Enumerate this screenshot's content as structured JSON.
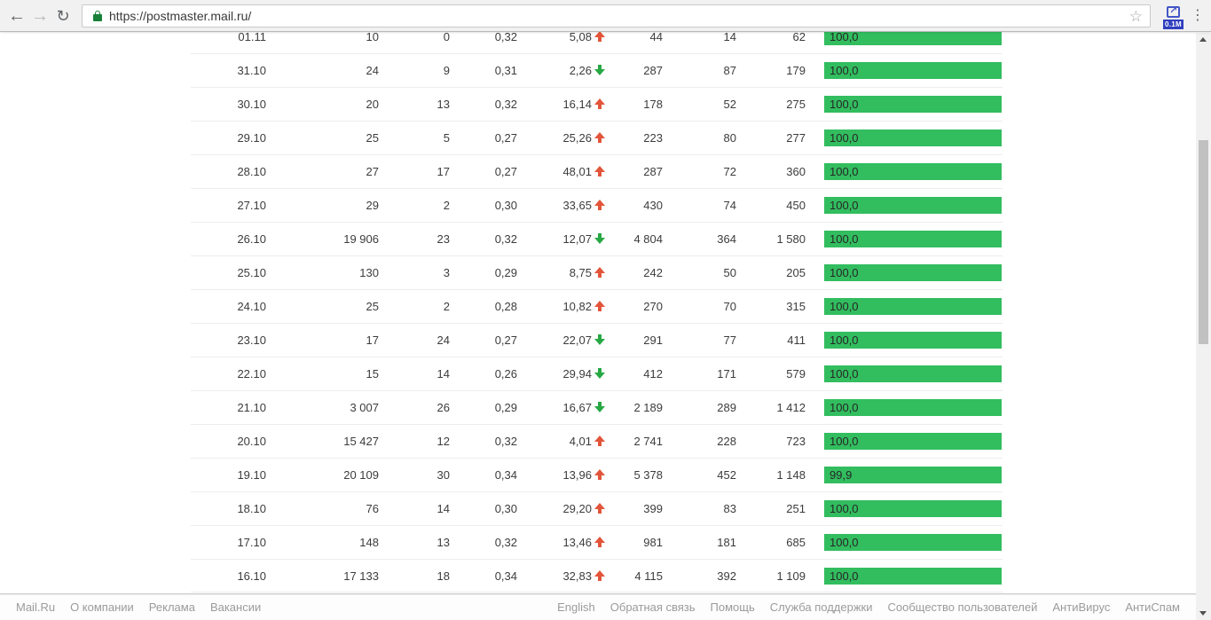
{
  "browser": {
    "url": "https://postmaster.mail.ru/",
    "extension_badge": "0.1M"
  },
  "colors": {
    "bar": "#32bd5f",
    "up": "#e2553a",
    "down": "#27a844"
  },
  "table": {
    "rows": [
      {
        "date": "01.11",
        "c1": "10",
        "c2": "0",
        "c3": "0,32",
        "trend": "5,08",
        "trend_dir": "up",
        "c5": "44",
        "c6": "14",
        "c7": "62",
        "bar": "100,0",
        "bar_pct": 100
      },
      {
        "date": "31.10",
        "c1": "24",
        "c2": "9",
        "c3": "0,31",
        "trend": "2,26",
        "trend_dir": "down",
        "c5": "287",
        "c6": "87",
        "c7": "179",
        "bar": "100,0",
        "bar_pct": 100
      },
      {
        "date": "30.10",
        "c1": "20",
        "c2": "13",
        "c3": "0,32",
        "trend": "16,14",
        "trend_dir": "up",
        "c5": "178",
        "c6": "52",
        "c7": "275",
        "bar": "100,0",
        "bar_pct": 100
      },
      {
        "date": "29.10",
        "c1": "25",
        "c2": "5",
        "c3": "0,27",
        "trend": "25,26",
        "trend_dir": "up",
        "c5": "223",
        "c6": "80",
        "c7": "277",
        "bar": "100,0",
        "bar_pct": 100
      },
      {
        "date": "28.10",
        "c1": "27",
        "c2": "17",
        "c3": "0,27",
        "trend": "48,01",
        "trend_dir": "up",
        "c5": "287",
        "c6": "72",
        "c7": "360",
        "bar": "100,0",
        "bar_pct": 100
      },
      {
        "date": "27.10",
        "c1": "29",
        "c2": "2",
        "c3": "0,30",
        "trend": "33,65",
        "trend_dir": "up",
        "c5": "430",
        "c6": "74",
        "c7": "450",
        "bar": "100,0",
        "bar_pct": 100
      },
      {
        "date": "26.10",
        "c1": "19 906",
        "c2": "23",
        "c3": "0,32",
        "trend": "12,07",
        "trend_dir": "down",
        "c5": "4 804",
        "c6": "364",
        "c7": "1 580",
        "bar": "100,0",
        "bar_pct": 100
      },
      {
        "date": "25.10",
        "c1": "130",
        "c2": "3",
        "c3": "0,29",
        "trend": "8,75",
        "trend_dir": "up",
        "c5": "242",
        "c6": "50",
        "c7": "205",
        "bar": "100,0",
        "bar_pct": 100
      },
      {
        "date": "24.10",
        "c1": "25",
        "c2": "2",
        "c3": "0,28",
        "trend": "10,82",
        "trend_dir": "up",
        "c5": "270",
        "c6": "70",
        "c7": "315",
        "bar": "100,0",
        "bar_pct": 100
      },
      {
        "date": "23.10",
        "c1": "17",
        "c2": "24",
        "c3": "0,27",
        "trend": "22,07",
        "trend_dir": "down",
        "c5": "291",
        "c6": "77",
        "c7": "411",
        "bar": "100,0",
        "bar_pct": 100
      },
      {
        "date": "22.10",
        "c1": "15",
        "c2": "14",
        "c3": "0,26",
        "trend": "29,94",
        "trend_dir": "down",
        "c5": "412",
        "c6": "171",
        "c7": "579",
        "bar": "100,0",
        "bar_pct": 100
      },
      {
        "date": "21.10",
        "c1": "3 007",
        "c2": "26",
        "c3": "0,29",
        "trend": "16,67",
        "trend_dir": "down",
        "c5": "2 189",
        "c6": "289",
        "c7": "1 412",
        "bar": "100,0",
        "bar_pct": 100
      },
      {
        "date": "20.10",
        "c1": "15 427",
        "c2": "12",
        "c3": "0,32",
        "trend": "4,01",
        "trend_dir": "up",
        "c5": "2 741",
        "c6": "228",
        "c7": "723",
        "bar": "100,0",
        "bar_pct": 100
      },
      {
        "date": "19.10",
        "c1": "20 109",
        "c2": "30",
        "c3": "0,34",
        "trend": "13,96",
        "trend_dir": "up",
        "c5": "5 378",
        "c6": "452",
        "c7": "1 148",
        "bar": "99,9",
        "bar_pct": 99.9
      },
      {
        "date": "18.10",
        "c1": "76",
        "c2": "14",
        "c3": "0,30",
        "trend": "29,20",
        "trend_dir": "up",
        "c5": "399",
        "c6": "83",
        "c7": "251",
        "bar": "100,0",
        "bar_pct": 100
      },
      {
        "date": "17.10",
        "c1": "148",
        "c2": "13",
        "c3": "0,32",
        "trend": "13,46",
        "trend_dir": "up",
        "c5": "981",
        "c6": "181",
        "c7": "685",
        "bar": "100,0",
        "bar_pct": 100
      },
      {
        "date": "16.10",
        "c1": "17 133",
        "c2": "18",
        "c3": "0,34",
        "trend": "32,83",
        "trend_dir": "up",
        "c5": "4 115",
        "c6": "392",
        "c7": "1 109",
        "bar": "100,0",
        "bar_pct": 100
      }
    ]
  },
  "footer": {
    "left": [
      "Mail.Ru",
      "О компании",
      "Реклама",
      "Вакансии"
    ],
    "right": [
      "English",
      "Обратная связь",
      "Помощь",
      "Служба поддержки",
      "Сообщество пользователей",
      "АнтиВирус",
      "АнтиСпам"
    ]
  }
}
